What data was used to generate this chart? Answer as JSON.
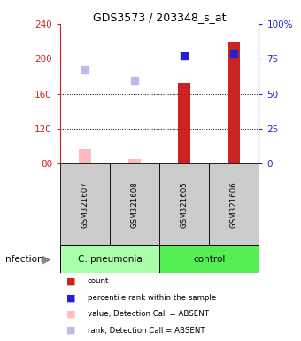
{
  "title": "GDS3573 / 203348_s_at",
  "samples": [
    "GSM321607",
    "GSM321608",
    "GSM321605",
    "GSM321606"
  ],
  "ylim_left": [
    80,
    240
  ],
  "ylim_right": [
    0,
    100
  ],
  "yticks_left": [
    80,
    120,
    160,
    200,
    240
  ],
  "yticks_right": [
    0,
    25,
    50,
    75,
    100
  ],
  "yticklabels_right": [
    "0",
    "25",
    "50",
    "75",
    "100%"
  ],
  "bar_values": [
    97,
    85,
    172,
    220
  ],
  "bar_absent": [
    true,
    true,
    false,
    false
  ],
  "bar_color_absent": "#ffbbbb",
  "bar_color_present": "#cc2222",
  "bar_width": 0.25,
  "dot_rank_absent": [
    188,
    175,
    null,
    null
  ],
  "dot_rank_present": [
    null,
    null,
    203,
    206
  ],
  "dot_color_absent": "#bbbbee",
  "dot_color_present": "#2222cc",
  "dot_size": 35,
  "grid_lines": [
    120,
    160,
    200
  ],
  "group_cpneumonia": [
    0,
    1
  ],
  "group_control": [
    2,
    3
  ],
  "color_cpneumonia": "#aaffaa",
  "color_control": "#55ee55",
  "color_sample_bg": "#cccccc",
  "left_axis_color": "#cc2222",
  "right_axis_color": "#2222cc",
  "legend_items": [
    {
      "color": "#cc2222",
      "label": "count"
    },
    {
      "color": "#2222cc",
      "label": "percentile rank within the sample"
    },
    {
      "color": "#ffbbbb",
      "label": "value, Detection Call = ABSENT"
    },
    {
      "color": "#bbbbee",
      "label": "rank, Detection Call = ABSENT"
    }
  ]
}
